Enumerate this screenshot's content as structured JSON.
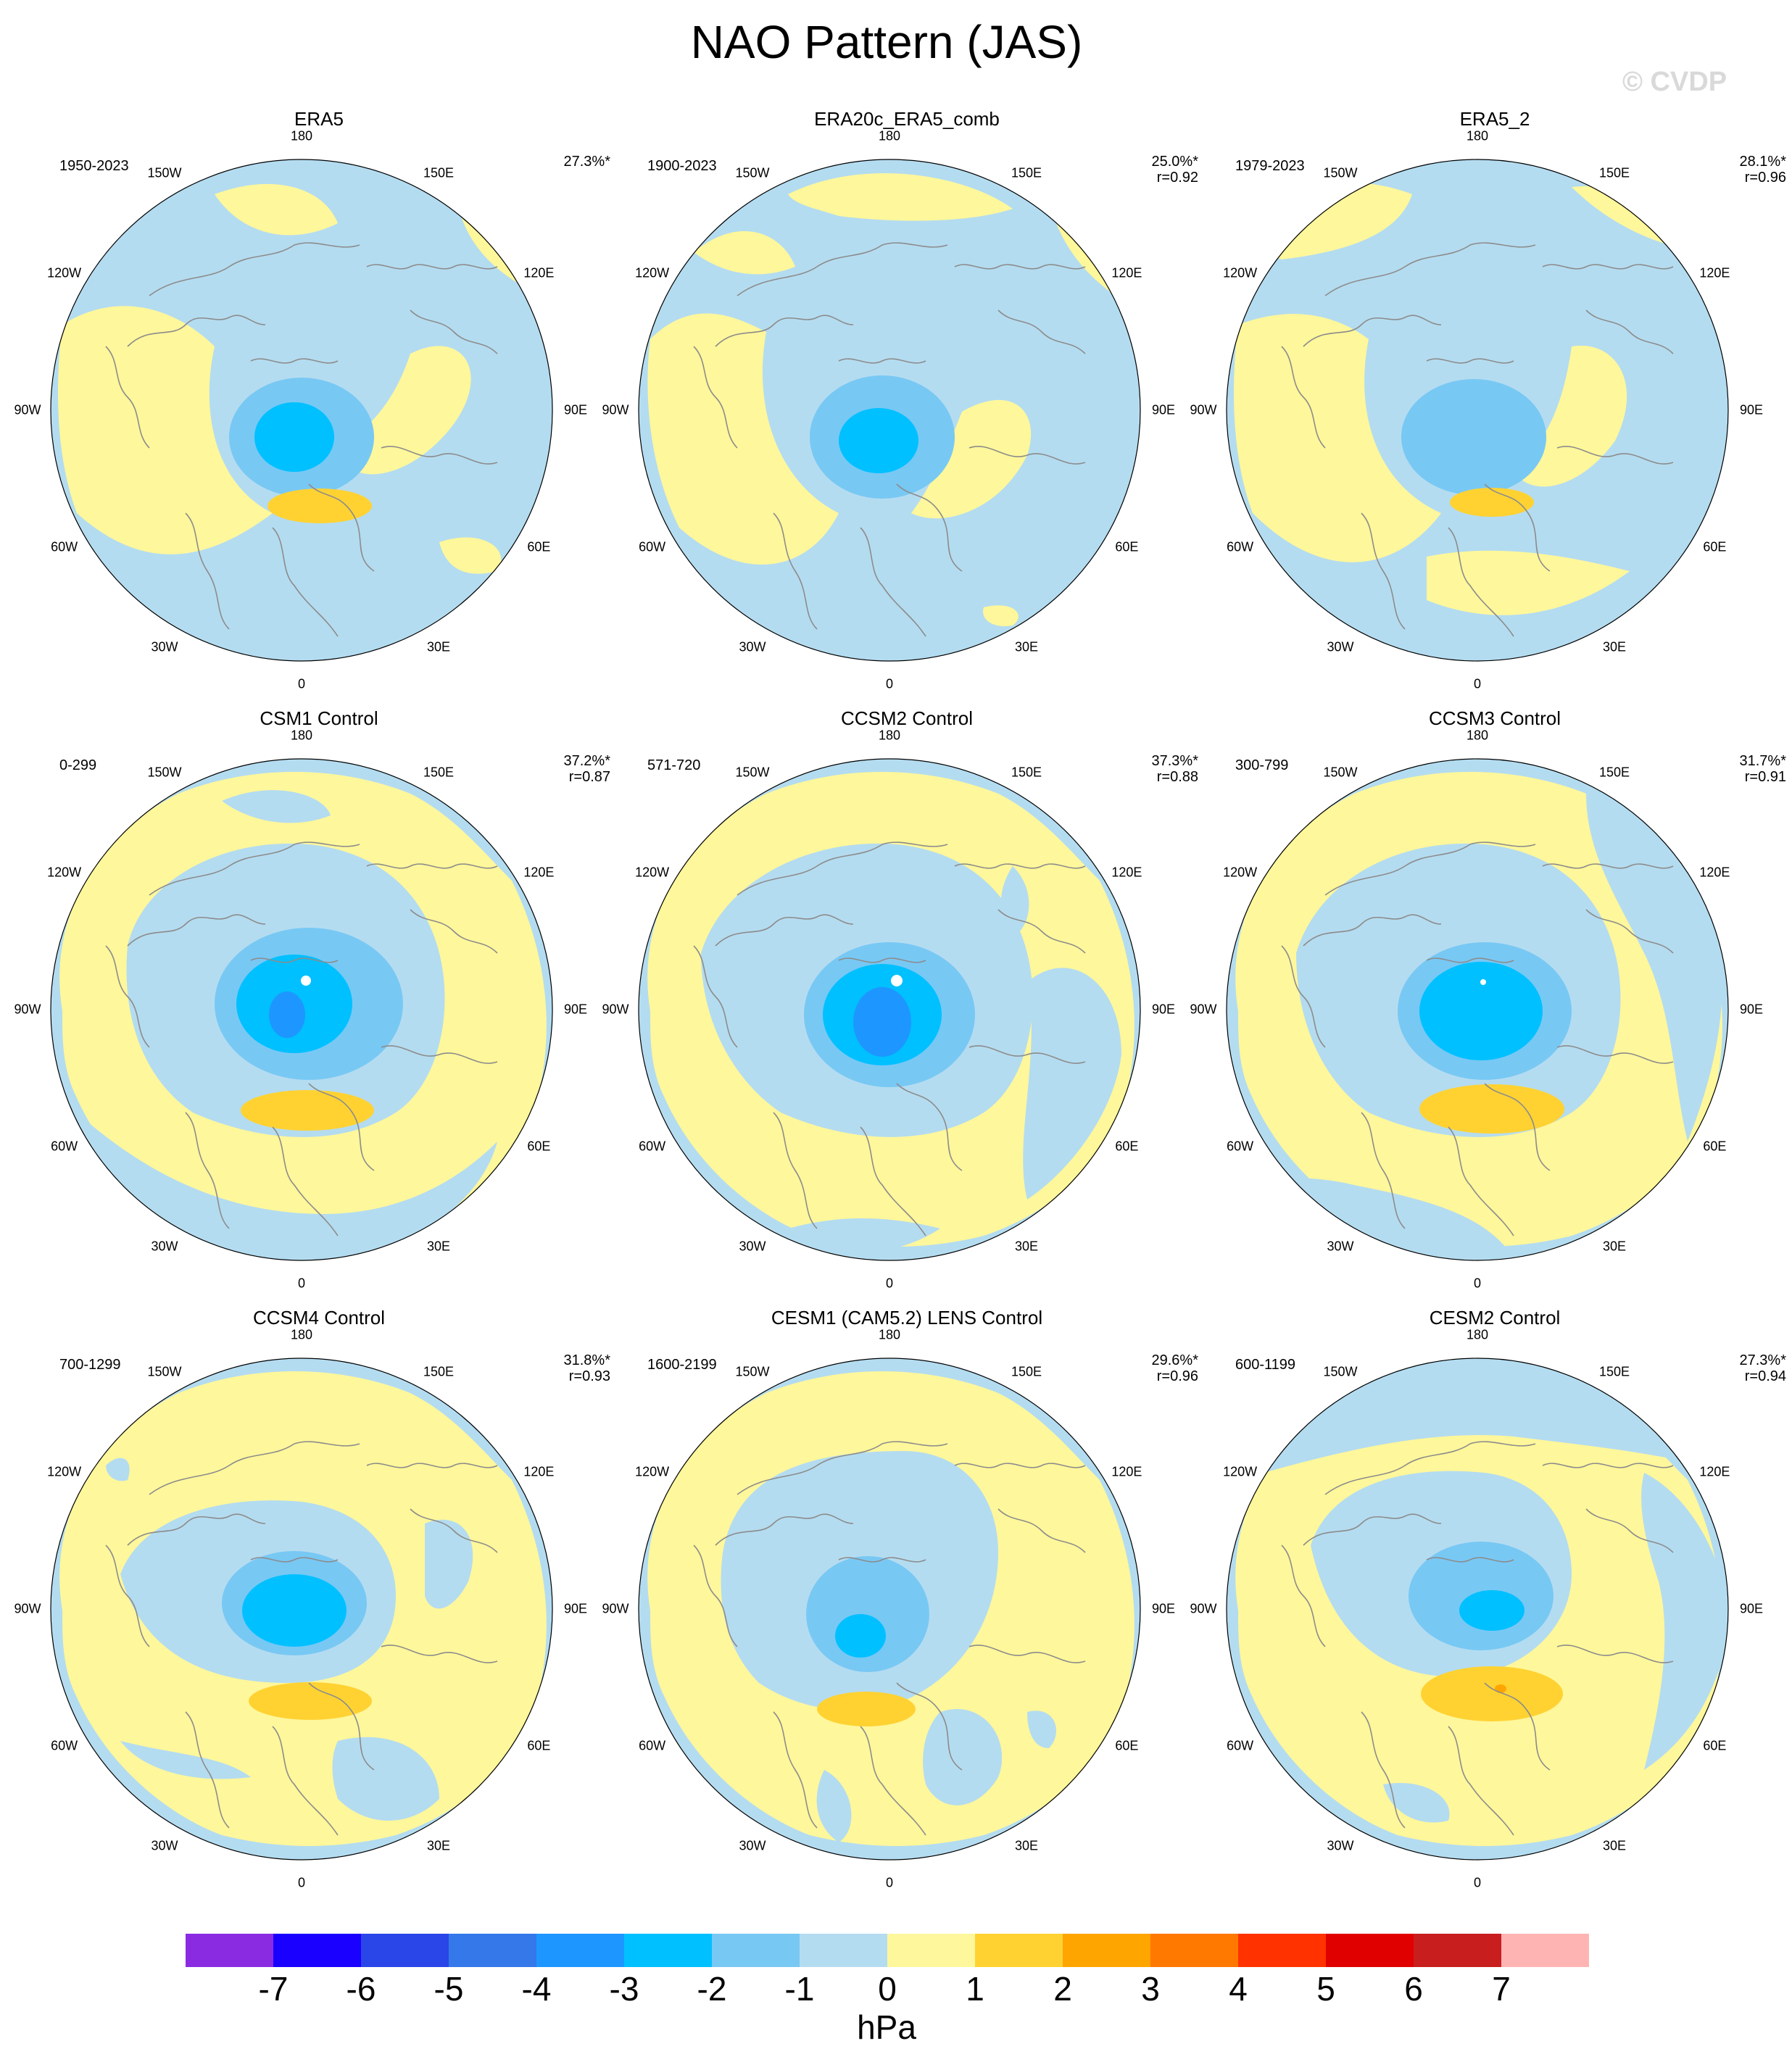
{
  "title": "NAO Pattern (JAS)",
  "watermark": "© CVDP",
  "unit": "hPa",
  "colors": {
    "ocean_land_neg1": "#b4dcf0",
    "pos1": "#fff79b",
    "contour_lines": "#8c8c8c"
  },
  "lon_labels": [
    "180",
    "150E",
    "120E",
    "90E",
    "60E",
    "30E",
    "0",
    "30W",
    "60W",
    "90W",
    "120W",
    "150W"
  ],
  "panels": [
    {
      "title": "ERA5",
      "years": "1950-2023",
      "pct": "27.3%*",
      "r": "",
      "variant": 0
    },
    {
      "title": "ERA20c_ERA5_comb",
      "years": "1900-2023",
      "pct": "25.0%*",
      "r": "r=0.92",
      "variant": 1
    },
    {
      "title": "ERA5_2",
      "years": "1979-2023",
      "pct": "28.1%*",
      "r": "r=0.96",
      "variant": 2
    },
    {
      "title": "CSM1 Control",
      "years": "0-299",
      "pct": "37.2%*",
      "r": "r=0.87",
      "variant": 3
    },
    {
      "title": "CCSM2 Control",
      "years": "571-720",
      "pct": "37.3%*",
      "r": "r=0.88",
      "variant": 4
    },
    {
      "title": "CCSM3 Control",
      "years": "300-799",
      "pct": "31.7%*",
      "r": "r=0.91",
      "variant": 5
    },
    {
      "title": "CCSM4 Control",
      "years": "700-1299",
      "pct": "31.8%*",
      "r": "r=0.93",
      "variant": 6
    },
    {
      "title": "CESM1 (CAM5.2) LENS Control",
      "years": "1600-2199",
      "pct": "29.6%*",
      "r": "r=0.96",
      "variant": 7
    },
    {
      "title": "CESM2 Control",
      "years": "600-1199",
      "pct": "27.3%*",
      "r": "r=0.94",
      "variant": 8
    }
  ],
  "colorbar": {
    "labels": [
      "-7",
      "-6",
      "-5",
      "-4",
      "-3",
      "-2",
      "-1",
      "0",
      "1",
      "2",
      "3",
      "4",
      "5",
      "6",
      "7"
    ],
    "colors": [
      "#8a2be2",
      "#1a00ff",
      "#2a45e8",
      "#3478ea",
      "#1e96ff",
      "#00c0ff",
      "#78c8f4",
      "#b4dcf0",
      "#fff79b",
      "#ffd232",
      "#ffa500",
      "#ff7800",
      "#ff3200",
      "#e10000",
      "#c81e1e",
      "#ffb4b4"
    ]
  }
}
